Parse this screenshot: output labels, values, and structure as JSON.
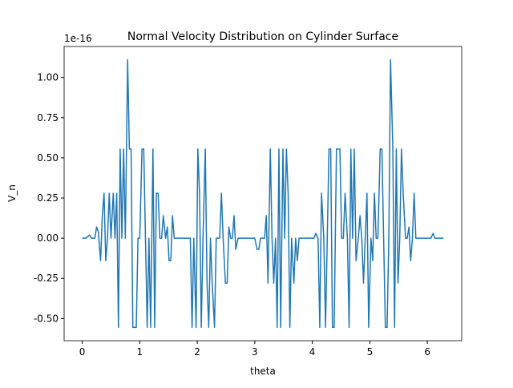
{
  "chart_data": {
    "type": "line",
    "title": "Normal Velocity Distribution on Cylinder Surface",
    "x_label": "theta",
    "y_label": "V_n",
    "y_offset_label": "1e-16",
    "xlim": [
      -0.314,
      6.597
    ],
    "ylim": [
      -0.638,
      1.193
    ],
    "xticks": [
      0,
      1,
      2,
      3,
      4,
      5,
      6
    ],
    "yticks": [
      {
        "value": -0.5,
        "label": "-0.50"
      },
      {
        "value": -0.25,
        "label": "-0.25"
      },
      {
        "value": 0,
        "label": "0.00"
      },
      {
        "value": 0.25,
        "label": "0.25"
      },
      {
        "value": 0.5,
        "label": "0.50"
      },
      {
        "value": 0.75,
        "label": "0.75"
      },
      {
        "value": 1.0,
        "label": "1.00"
      }
    ],
    "grid": false,
    "series": [
      {
        "color": "#1f77b4",
        "x": [
          0,
          0.06,
          0.13,
          0.16,
          0.22,
          0.25,
          0.28,
          0.32,
          0.35,
          0.38,
          0.41,
          0.44,
          0.47,
          0.5,
          0.54,
          0.57,
          0.6,
          0.63,
          0.66,
          0.69,
          0.72,
          0.75,
          0.79,
          0.82,
          0.85,
          0.88,
          0.94,
          0.97,
          1.0,
          1.04,
          1.07,
          1.1,
          1.13,
          1.16,
          1.19,
          1.23,
          1.26,
          1.29,
          1.32,
          1.35,
          1.38,
          1.41,
          1.45,
          1.48,
          1.51,
          1.54,
          1.57,
          1.6,
          1.88,
          1.91,
          1.94,
          1.98,
          2.01,
          2.04,
          2.07,
          2.1,
          2.14,
          2.17,
          2.2,
          2.23,
          2.26,
          2.3,
          2.33,
          2.39,
          2.42,
          2.45,
          2.49,
          2.52,
          2.55,
          2.58,
          2.61,
          2.64,
          2.67,
          2.71,
          3.0,
          3.04,
          3.07,
          3.1,
          3.17,
          3.2,
          3.23,
          3.27,
          3.3,
          3.33,
          3.36,
          3.39,
          3.42,
          3.45,
          3.49,
          3.52,
          3.55,
          3.58,
          3.61,
          3.64,
          3.68,
          3.71,
          3.74,
          3.77,
          4.03,
          4.06,
          4.1,
          4.13,
          4.16,
          4.2,
          4.23,
          4.26,
          4.29,
          4.32,
          4.35,
          4.38,
          4.42,
          4.45,
          4.48,
          4.51,
          4.54,
          4.57,
          4.61,
          4.64,
          4.67,
          4.7,
          4.73,
          4.76,
          4.8,
          4.83,
          4.86,
          4.89,
          4.92,
          4.95,
          4.98,
          5.02,
          5.05,
          5.08,
          5.11,
          5.14,
          5.18,
          5.21,
          5.24,
          5.27,
          5.3,
          5.33,
          5.36,
          5.4,
          5.43,
          5.46,
          5.49,
          5.52,
          5.55,
          5.58,
          5.62,
          5.65,
          5.68,
          5.71,
          5.74,
          5.77,
          5.8,
          6.06,
          6.1,
          6.13,
          6.28
        ],
        "values": [
          0,
          0,
          0.02,
          0,
          0,
          0.07,
          0.04,
          -0.14,
          0.14,
          0.28,
          -0.14,
          0,
          0.28,
          0,
          0.28,
          0,
          0.28,
          -0.555,
          0.555,
          0,
          0.555,
          0,
          1.11,
          0.555,
          0.555,
          -0.555,
          -0.555,
          0,
          0,
          0.555,
          0.555,
          0,
          -0.555,
          0,
          -0.555,
          0.555,
          -0.555,
          0.28,
          0.28,
          0,
          0,
          0.14,
          0,
          0.07,
          -0.14,
          -0.14,
          0.14,
          0,
          0,
          -0.555,
          0,
          -0.555,
          0.555,
          0.28,
          -0.555,
          0,
          0.555,
          -0.28,
          -0.555,
          0,
          -0.28,
          -0.555,
          0,
          0,
          0.28,
          0,
          -0.28,
          -0.28,
          0.07,
          0,
          0,
          0.14,
          -0.07,
          0,
          0,
          -0.07,
          -0.07,
          0,
          0,
          0.14,
          -0.28,
          0.555,
          0,
          -0.28,
          0,
          -0.555,
          0.555,
          -0.555,
          0.555,
          0,
          0.555,
          0.28,
          -0.555,
          0,
          -0.28,
          0,
          -0.14,
          0,
          0,
          0.03,
          0,
          -0.555,
          0.28,
          0,
          -0.555,
          0,
          0.555,
          0.555,
          -0.555,
          -0.555,
          0.555,
          0.555,
          0.555,
          0,
          0,
          0.28,
          0,
          -0.555,
          0.555,
          0,
          0.555,
          -0.14,
          0,
          0.14,
          0,
          -0.28,
          0,
          0.28,
          -0.555,
          0,
          -0.14,
          0.28,
          0,
          0,
          0.555,
          0.555,
          0,
          -0.555,
          -0.555,
          0,
          1.11,
          0.555,
          -0.555,
          0.555,
          -0.28,
          0,
          0.555,
          0.28,
          0,
          0,
          0.07,
          -0.14,
          0,
          0.28,
          0,
          0,
          0.03,
          0,
          0
        ]
      }
    ]
  }
}
